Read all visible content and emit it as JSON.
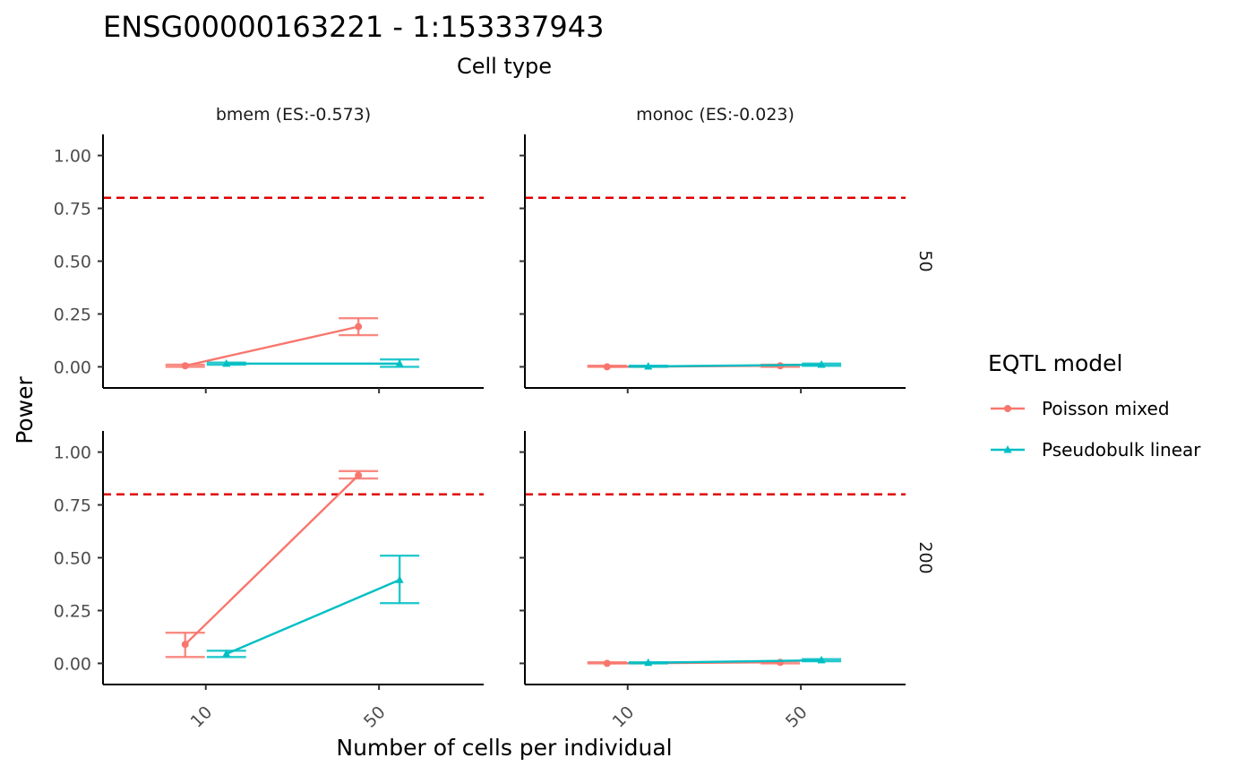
{
  "chart_data": {
    "type": "line",
    "title": "ENSG00000163221 - 1:153337943",
    "subtitle": "Cell type",
    "xlabel": "Number of cells per individual",
    "ylabel": "Power",
    "x_categories": [
      "10",
      "50"
    ],
    "y_ticks": [
      "0.00",
      "0.25",
      "0.50",
      "0.75",
      "1.00"
    ],
    "ylim": [
      -0.1,
      1.1
    ],
    "reference_line": {
      "value": 0.8,
      "color": "#e00000",
      "style": "dashed"
    },
    "column_facets": [
      "bmem (ES:-0.573)",
      "monoc (ES:-0.023)"
    ],
    "row_facets": [
      "50",
      "200"
    ],
    "legend": {
      "title": "EQTL model",
      "position": "right",
      "entries": [
        {
          "name": "Poisson mixed",
          "color": "#f8766d",
          "marker": "circle"
        },
        {
          "name": "Pseudobulk linear",
          "color": "#00bfc4",
          "marker": "triangle"
        }
      ]
    },
    "panels": [
      {
        "column": "bmem (ES:-0.573)",
        "row": "50",
        "series": [
          {
            "name": "Poisson mixed",
            "x": [
              "10",
              "50"
            ],
            "y": [
              0.005,
              0.19
            ],
            "ymin": [
              0.0,
              0.15
            ],
            "ymax": [
              0.01,
              0.23
            ]
          },
          {
            "name": "Pseudobulk linear",
            "x": [
              "10",
              "50"
            ],
            "y": [
              0.015,
              0.015
            ],
            "ymin": [
              0.01,
              0.0
            ],
            "ymax": [
              0.02,
              0.035
            ]
          }
        ]
      },
      {
        "column": "monoc (ES:-0.023)",
        "row": "50",
        "series": [
          {
            "name": "Poisson mixed",
            "x": [
              "10",
              "50"
            ],
            "y": [
              0.0,
              0.005
            ],
            "ymin": [
              0.0,
              0.0
            ],
            "ymax": [
              0.005,
              0.01
            ]
          },
          {
            "name": "Pseudobulk linear",
            "x": [
              "10",
              "50"
            ],
            "y": [
              0.002,
              0.01
            ],
            "ymin": [
              0.0,
              0.005
            ],
            "ymax": [
              0.005,
              0.015
            ]
          }
        ]
      },
      {
        "column": "bmem (ES:-0.573)",
        "row": "200",
        "series": [
          {
            "name": "Poisson mixed",
            "x": [
              "10",
              "50"
            ],
            "y": [
              0.09,
              0.89
            ],
            "ymin": [
              0.03,
              0.875
            ],
            "ymax": [
              0.145,
              0.91
            ]
          },
          {
            "name": "Pseudobulk linear",
            "x": [
              "10",
              "50"
            ],
            "y": [
              0.045,
              0.395
            ],
            "ymin": [
              0.03,
              0.285
            ],
            "ymax": [
              0.06,
              0.51
            ]
          }
        ]
      },
      {
        "column": "monoc (ES:-0.023)",
        "row": "200",
        "series": [
          {
            "name": "Poisson mixed",
            "x": [
              "10",
              "50"
            ],
            "y": [
              0.0,
              0.005
            ],
            "ymin": [
              0.0,
              0.0
            ],
            "ymax": [
              0.005,
              0.01
            ]
          },
          {
            "name": "Pseudobulk linear",
            "x": [
              "10",
              "50"
            ],
            "y": [
              0.003,
              0.015
            ],
            "ymin": [
              0.0,
              0.01
            ],
            "ymax": [
              0.005,
              0.02
            ]
          }
        ]
      }
    ]
  }
}
